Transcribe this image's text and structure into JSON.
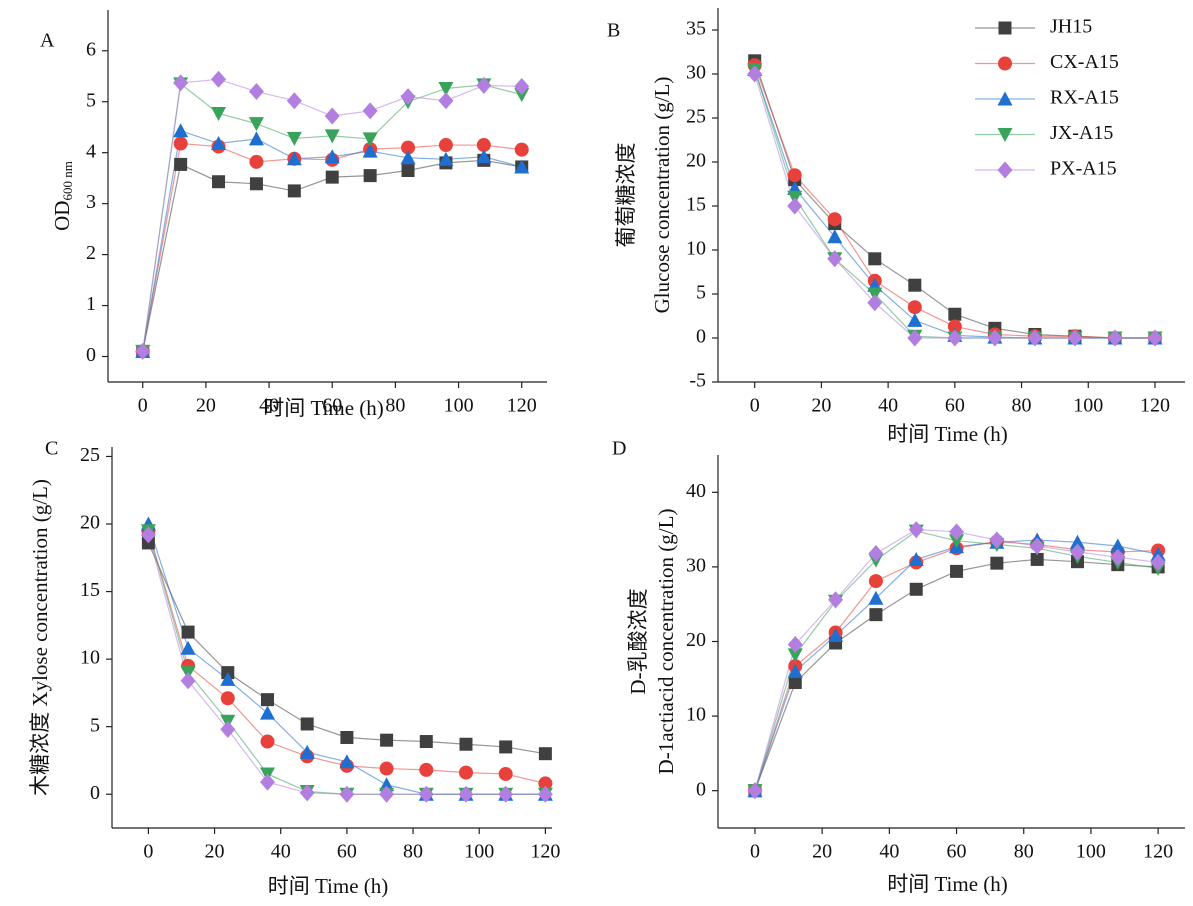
{
  "chart_data": [
    {
      "type": "line",
      "panel_label": "A",
      "xlabel": "时间  Time (h)",
      "ylabel": {
        "text": "OD",
        "subscript": "600 nm"
      },
      "x": [
        0,
        12,
        24,
        36,
        48,
        60,
        72,
        84,
        96,
        108,
        120
      ],
      "xlim": [
        -11,
        128
      ],
      "xticks": [
        0,
        20,
        40,
        60,
        80,
        100,
        120
      ],
      "ylim": [
        -0.5,
        6.8
      ],
      "yticks": [
        0,
        1,
        2,
        3,
        4,
        5,
        6
      ],
      "legend": false,
      "series": [
        {
          "name": "JH15",
          "color": "#404040",
          "marker": "square",
          "values": [
            0.1,
            3.77,
            3.43,
            3.39,
            3.25,
            3.52,
            3.55,
            3.65,
            3.8,
            3.85,
            3.72
          ]
        },
        {
          "name": "CX-A15",
          "color": "#e8413c",
          "marker": "circle",
          "values": [
            0.1,
            4.18,
            4.12,
            3.82,
            3.88,
            3.86,
            4.07,
            4.1,
            4.15,
            4.15,
            4.06
          ]
        },
        {
          "name": "RX-A15",
          "color": "#1f6fd1",
          "marker": "triangle-up",
          "values": [
            0.1,
            4.43,
            4.18,
            4.27,
            3.88,
            3.92,
            4.03,
            3.9,
            3.87,
            3.92,
            3.72
          ]
        },
        {
          "name": "JX-A15",
          "color": "#3aa35b",
          "marker": "triangle-down",
          "values": [
            0.1,
            5.35,
            4.77,
            4.57,
            4.28,
            4.33,
            4.27,
            5.0,
            5.26,
            5.33,
            5.14
          ]
        },
        {
          "name": "PX-A15",
          "color": "#b27fe0",
          "marker": "diamond",
          "values": [
            0.1,
            5.37,
            5.44,
            5.2,
            5.02,
            4.72,
            4.82,
            5.1,
            5.02,
            5.32,
            5.3
          ]
        }
      ]
    },
    {
      "type": "line",
      "panel_label": "B",
      "xlabel": "时间  Time (h)",
      "ylabel": [
        "葡萄糖浓度",
        "Glucose concentration (g/L)"
      ],
      "x": [
        0,
        12,
        24,
        36,
        48,
        60,
        72,
        84,
        96,
        108,
        120
      ],
      "xlim": [
        -11,
        129
      ],
      "xticks": [
        0,
        20,
        40,
        60,
        80,
        100,
        120
      ],
      "ylim": [
        -5,
        37.5
      ],
      "yticks": [
        -5,
        0,
        5,
        10,
        15,
        20,
        25,
        30,
        35
      ],
      "legend": "upper right",
      "series": [
        {
          "name": "JH15",
          "color": "#404040",
          "marker": "square",
          "values": [
            31.5,
            18,
            13,
            9,
            6,
            2.7,
            1.1,
            0.4,
            0.2,
            0,
            0
          ]
        },
        {
          "name": "CX-A15",
          "color": "#e8413c",
          "marker": "circle",
          "values": [
            31,
            18.5,
            13.5,
            6.5,
            3.5,
            1.3,
            0.4,
            0.2,
            0.2,
            0,
            0
          ]
        },
        {
          "name": "RX-A15",
          "color": "#1f6fd1",
          "marker": "triangle-up",
          "values": [
            30.5,
            17,
            11.5,
            6,
            2,
            0.3,
            0.1,
            0,
            0,
            0,
            0
          ]
        },
        {
          "name": "JX-A15",
          "color": "#3aa35b",
          "marker": "triangle-down",
          "values": [
            30.5,
            16,
            9,
            5,
            0.2,
            0,
            0,
            0,
            0,
            0,
            0
          ]
        },
        {
          "name": "PX-A15",
          "color": "#b27fe0",
          "marker": "diamond",
          "values": [
            30,
            15,
            9,
            4,
            0,
            0,
            0,
            0,
            0,
            0,
            0
          ]
        }
      ]
    },
    {
      "type": "line",
      "panel_label": "C",
      "xlabel": "时间  Time (h)",
      "ylabel": [
        "木糖浓度 Xylose concentration (g/L)"
      ],
      "x": [
        0,
        12,
        24,
        36,
        48,
        60,
        72,
        84,
        96,
        108,
        120
      ],
      "xlim": [
        -11,
        122
      ],
      "xticks": [
        0,
        20,
        40,
        60,
        80,
        100,
        120
      ],
      "ylim": [
        -2.5,
        25.7
      ],
      "yticks": [
        0,
        5,
        10,
        15,
        20,
        25
      ],
      "legend": false,
      "series": [
        {
          "name": "JH15",
          "color": "#404040",
          "marker": "square",
          "values": [
            18.6,
            12,
            9,
            7,
            5.2,
            4.2,
            4,
            3.9,
            3.7,
            3.5,
            3
          ]
        },
        {
          "name": "CX-A15",
          "color": "#e8413c",
          "marker": "circle",
          "values": [
            19.5,
            9.5,
            7.1,
            3.9,
            2.8,
            2.1,
            1.9,
            1.8,
            1.6,
            1.5,
            0.8
          ]
        },
        {
          "name": "RX-A15",
          "color": "#1f6fd1",
          "marker": "triangle-up",
          "values": [
            20,
            10.8,
            8.5,
            6,
            3.1,
            2.4,
            0.7,
            0,
            0,
            0,
            0
          ]
        },
        {
          "name": "JX-A15",
          "color": "#3aa35b",
          "marker": "triangle-down",
          "values": [
            19.5,
            9,
            5.4,
            1.5,
            0.2,
            0,
            0,
            0,
            0,
            0,
            0
          ]
        },
        {
          "name": "PX-A15",
          "color": "#b27fe0",
          "marker": "diamond",
          "values": [
            19.2,
            8.4,
            4.8,
            0.9,
            0.1,
            0,
            0,
            0,
            0,
            0,
            0
          ]
        }
      ]
    },
    {
      "type": "line",
      "panel_label": "D",
      "xlabel": "时间  Time (h)",
      "ylabel": [
        "D-乳酸浓度",
        "D-1actiacid concentration (g/L)"
      ],
      "x": [
        0,
        12,
        24,
        36,
        48,
        60,
        72,
        84,
        96,
        108,
        120
      ],
      "xlim": [
        -11,
        128
      ],
      "xticks": [
        0,
        20,
        40,
        60,
        80,
        100,
        120
      ],
      "ylim": [
        -5,
        45
      ],
      "yticks": [
        0,
        10,
        20,
        30,
        40
      ],
      "legend": false,
      "series": [
        {
          "name": "JH15",
          "color": "#404040",
          "marker": "square",
          "values": [
            0,
            14.5,
            19.8,
            23.6,
            27,
            29.4,
            30.5,
            31,
            30.7,
            30.3,
            30
          ]
        },
        {
          "name": "CX-A15",
          "color": "#e8413c",
          "marker": "circle",
          "values": [
            0,
            16.7,
            21.2,
            28.1,
            30.6,
            32.5,
            33.4,
            33,
            32.3,
            32,
            32.2
          ]
        },
        {
          "name": "RX-A15",
          "color": "#1f6fd1",
          "marker": "triangle-up",
          "values": [
            0,
            16,
            20.8,
            25.8,
            31,
            32.7,
            33.3,
            33.6,
            33.3,
            32.8,
            31.7
          ]
        },
        {
          "name": "JX-A15",
          "color": "#3aa35b",
          "marker": "triangle-down",
          "values": [
            0,
            18.2,
            25.4,
            30.9,
            34.8,
            33.5,
            33,
            32.5,
            31.4,
            30.6,
            29.8
          ]
        },
        {
          "name": "PX-A15",
          "color": "#b27fe0",
          "marker": "diamond",
          "values": [
            0,
            19.6,
            25.6,
            31.8,
            35,
            34.7,
            33.6,
            32.8,
            32,
            31.3,
            30.6
          ]
        }
      ]
    }
  ]
}
